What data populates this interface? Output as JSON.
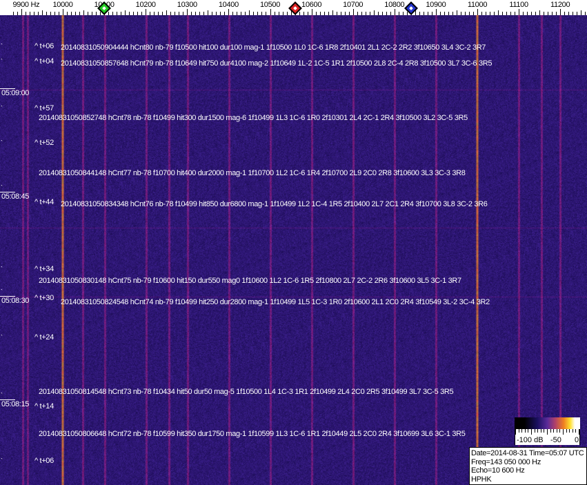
{
  "chart_data": {
    "type": "heatmap",
    "description_kind": "waterfall spectrogram",
    "x_axis": {
      "unit_label": "9900 Hz",
      "ticks": [
        9900,
        10000,
        10100,
        10200,
        10300,
        10400,
        10500,
        10600,
        10700,
        10800,
        10900,
        11000,
        11100,
        11200
      ],
      "tick_labels": [
        "9900 Hz",
        "10000",
        "10100",
        "10200",
        "10300",
        "10400",
        "10500",
        "10600",
        "10700",
        "10800",
        "10900",
        "11000",
        "11100",
        "11200"
      ],
      "range": [
        9880,
        11295
      ],
      "minor_tick_step": 10
    },
    "markers": [
      {
        "freq": 10100,
        "color": "#22cc22"
      },
      {
        "freq": 10560,
        "color": "#dd2222"
      },
      {
        "freq": 10840,
        "color": "#2233cc"
      }
    ],
    "time_labels": [
      "05:09:00",
      "05:08:45",
      "05:08:30",
      "05:08:15"
    ],
    "carriers_strong_hz": [
      10000,
      11000
    ],
    "colors": {
      "background": "#23157a",
      "strong_carrier": "#e07a30",
      "weak_carrier": "#7a2a8a"
    },
    "annotations": [
      {
        "offset": "^ t+06",
        "text": "20140831050904444 hCnt80 nb-79 f10500 hit100 dur100 mag-1 1f10500 1L0 1C-6 1R8 2f10401 2L1 2C-2 2R2 3f10650 3L4 3C-2 3R7"
      },
      {
        "offset": "^ t+04",
        "text": "20140831050857648 hCnt79 nb-78 f10649 hit750 dur4100 mag-2 1f10649 1L-2 1C-5 1R1 2f10500 2L8 2C-4 2R8 3f10500 3L7 3C-6 3R5"
      },
      {
        "offset": "^ t+57",
        "text": "20140831050852748 hCnt78 nb-78 f10499 hit300 dur1500 mag-6 1f10499 1L3 1C-6 1R0 2f10301 2L4 2C-1 2R4 3f10500 3L2 3C-5 3R5"
      },
      {
        "offset": "^ t+52",
        "text": "20140831050844148 hCnt77 nb-78 f10700 hit400 dur2000 mag-1 1f10700 1L2 1C-6 1R4 2f10700 2L9 2C0 2R8 3f10600 3L3 3C-3 3R8"
      },
      {
        "offset": "^ t+44",
        "text": "20140831050834348 hCnt76 nb-78 f10499 hit850 dur6800 mag-1 1f10499 1L2 1C-4 1R5 2f10400 2L7 2C1 2R4 3f10700 3L8 3C-2 3R6"
      },
      {
        "offset": "^ t+34",
        "text": "20140831050830148 hCnt75 nb-79 f10600 hit150 dur550 mag0 1f10600 1L2 1C-6 1R5 2f10800 2L7 2C-2 2R6 3f10600 3L5 3C-1 3R7"
      },
      {
        "offset": "^ t+30",
        "text": "20140831050824548 hCnt74 nb-79 f10499 hit250 dur2800 mag-1 1f10499 1L5 1C-3 1R0 2f10600 2L1 2C0 2R4 3f10549 3L-2 3C-4 3R2"
      },
      {
        "offset": "^ t+24",
        "text": "20140831050814548 hCnt73 nb-78 f10434 hit50 dur50 mag-5 1f10500 1L4 1C-3 1R1 2f10499 2L4 2C0 2R5 3f10499 3L7 3C-5 3R5"
      },
      {
        "offset": "^ t+14",
        "text": "20140831050806648 hCnt72 nb-78 f10599 hit350 dur1750 mag-1 1f10599 1L3 1C-6 1R1 2f10449 2L5 2C0 2R4 3f10699 3L6 3C-1 3R5"
      },
      {
        "offset": "^ t+06",
        "text": ""
      }
    ],
    "colorbar": {
      "labels": [
        "-100 dB",
        "-50",
        "0"
      ],
      "range": [
        -100,
        0
      ]
    }
  },
  "info": {
    "line1": "Date=2014-08-31 Time=05:07 UTC",
    "line2": "Freq=143 050 000 Hz",
    "line3": "Echo=10 600 Hz",
    "line4": "HPHK"
  }
}
